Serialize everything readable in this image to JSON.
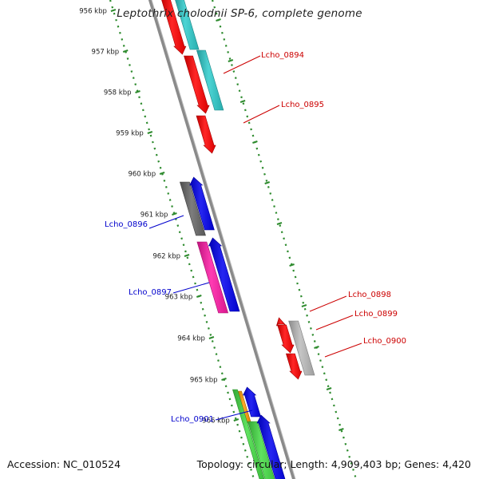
{
  "title": "Leptothrix cholodnii SP-6, complete genome",
  "footer": {
    "accession": "Accession: NC_010524",
    "summary": "Topology: circular; Length: 4,909,403 bp; Genes: 4,420"
  },
  "scale_labels": [
    "956 kbp",
    "957 kbp",
    "958 kbp",
    "959 kbp",
    "960 kbp",
    "961 kbp",
    "962 kbp",
    "963 kbp",
    "964 kbp",
    "965 kbp",
    "966 kbp"
  ],
  "colors": {
    "backbone": "#8a8a8a",
    "ruler": "#2e8b2e",
    "red": "#ff0000",
    "cyan": "#2ecccc",
    "blue": "#0000ee",
    "gray": "#666666",
    "light_gray": "#bbbbbb",
    "magenta": "#ff1aa6",
    "green": "#44dd44",
    "orange": "#ff9900",
    "label_red": "#cc0000",
    "label_blue": "#0000cc"
  },
  "gene_labels": [
    {
      "text": "Lcho_0894",
      "strand": "forward"
    },
    {
      "text": "Lcho_0895",
      "strand": "forward"
    },
    {
      "text": "Lcho_0896",
      "strand": "reverse"
    },
    {
      "text": "Lcho_0897",
      "strand": "reverse"
    },
    {
      "text": "Lcho_0898",
      "strand": "forward"
    },
    {
      "text": "Lcho_0899",
      "strand": "forward"
    },
    {
      "text": "Lcho_0900",
      "strand": "forward"
    },
    {
      "text": "Lcho_0901",
      "strand": "reverse"
    }
  ],
  "features": [
    {
      "name": "red-gene",
      "color": "red",
      "arrow": "down"
    },
    {
      "name": "cyan-gene",
      "color": "cyan",
      "arrow": "none"
    },
    {
      "name": "red-gene",
      "color": "red",
      "arrow": "down"
    },
    {
      "name": "cyan-gene",
      "color": "cyan",
      "arrow": "none"
    },
    {
      "name": "red-gene",
      "color": "red",
      "arrow": "down"
    },
    {
      "name": "gray-gene",
      "color": "gray",
      "arrow": "none"
    },
    {
      "name": "blue-gene",
      "color": "blue",
      "arrow": "up"
    },
    {
      "name": "magenta-gene",
      "color": "magenta",
      "arrow": "none"
    },
    {
      "name": "blue-gene",
      "color": "blue",
      "arrow": "up"
    },
    {
      "name": "red-gene",
      "color": "red",
      "arrow": "up"
    },
    {
      "name": "red-gene",
      "color": "red",
      "arrow": "down"
    },
    {
      "name": "red-gene",
      "color": "red",
      "arrow": "down"
    },
    {
      "name": "light-gray-gene",
      "color": "light_gray",
      "arrow": "none"
    },
    {
      "name": "orange-gene",
      "color": "orange",
      "arrow": "none"
    },
    {
      "name": "green-gene",
      "color": "green",
      "arrow": "none"
    },
    {
      "name": "blue-gene",
      "color": "blue",
      "arrow": "up"
    },
    {
      "name": "green-gene",
      "color": "green",
      "arrow": "none"
    },
    {
      "name": "blue-gene",
      "color": "blue",
      "arrow": "up"
    }
  ]
}
